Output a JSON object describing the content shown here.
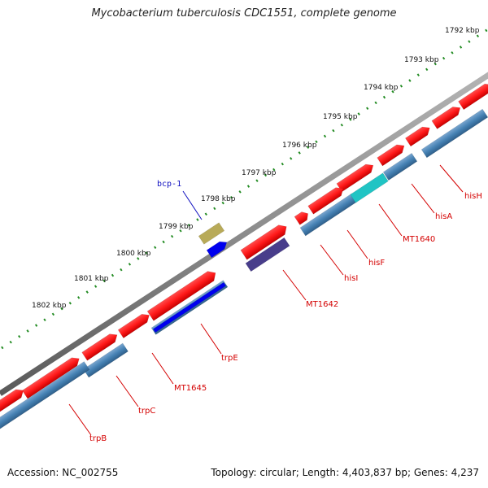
{
  "title": "Mycobacterium tuberculosis CDC1551, complete genome",
  "footer": {
    "accession": "Accession: NC_002755",
    "summary": "Topology: circular; Length: 4,403,837 bp; Genes: 4,237"
  },
  "colors": {
    "background": "#ffffff",
    "backbone": "#8c8c8c",
    "ruler_ticks": "#228b22",
    "cds_red": "#ff1a1a",
    "cds_steelblue": "#4682b4",
    "gene_label": "#d40000",
    "blue_feature": "#0000ee",
    "olive_feature": "#b8aa58",
    "navy_feature": "#483d8b",
    "cyan_feature": "#20c4c4",
    "bcp_label": "#1010c0"
  },
  "ruler": {
    "labels": [
      "1792 kbp",
      "1793 kbp",
      "1794 kbp",
      "1795 kbp",
      "1796 kbp",
      "1797 kbp",
      "1798 kbp",
      "1799 kbp",
      "1800 kbp",
      "1801 kbp",
      "1802 kbp"
    ]
  },
  "genes": [
    "hisH",
    "hisA",
    "MT1640",
    "hisF",
    "hisI",
    "MT1642",
    "trpE",
    "MT1645",
    "trpC",
    "trpB"
  ],
  "feature_labels": [
    "bcp-1"
  ]
}
